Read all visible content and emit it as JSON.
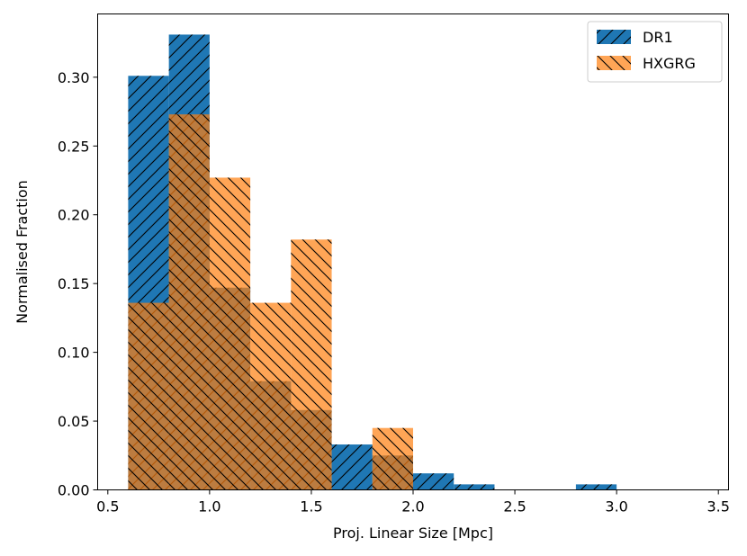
{
  "chart_data": {
    "type": "bar",
    "title": "",
    "xlabel": "Proj. Linear Size [Mpc]",
    "ylabel": "Normalised Fraction",
    "xlim": [
      0.45,
      3.55
    ],
    "ylim": [
      0,
      0.346
    ],
    "xticks": [
      0.5,
      1.0,
      1.5,
      2.0,
      2.5,
      3.0,
      3.5
    ],
    "xtick_labels": [
      "0.5",
      "1.0",
      "1.5",
      "2.0",
      "2.5",
      "3.0",
      "3.5"
    ],
    "yticks": [
      0.0,
      0.05,
      0.1,
      0.15,
      0.2,
      0.25,
      0.3
    ],
    "ytick_labels": [
      "0.00",
      "0.05",
      "0.10",
      "0.15",
      "0.20",
      "0.25",
      "0.30"
    ],
    "bin_edges": [
      0.6,
      0.8,
      1.0,
      1.2,
      1.4,
      1.6,
      1.8,
      2.0,
      2.2,
      2.4,
      2.6,
      2.8,
      3.0
    ],
    "legend_position": "top-right",
    "series": [
      {
        "name": "DR1",
        "color": "#1f77b4",
        "hatch": "forward-diagonal",
        "values": [
          0.301,
          0.331,
          0.147,
          0.079,
          0.058,
          0.033,
          0.025,
          0.012,
          0.004,
          0.0,
          0.0,
          0.004
        ]
      },
      {
        "name": "HXGRG",
        "color": "#ff7f0e",
        "hatch": "back-diagonal",
        "alpha": 0.7,
        "values": [
          0.136,
          0.273,
          0.227,
          0.136,
          0.182,
          0.0,
          0.045,
          0.0,
          0.0,
          0.0,
          0.0,
          0.0
        ]
      }
    ]
  }
}
